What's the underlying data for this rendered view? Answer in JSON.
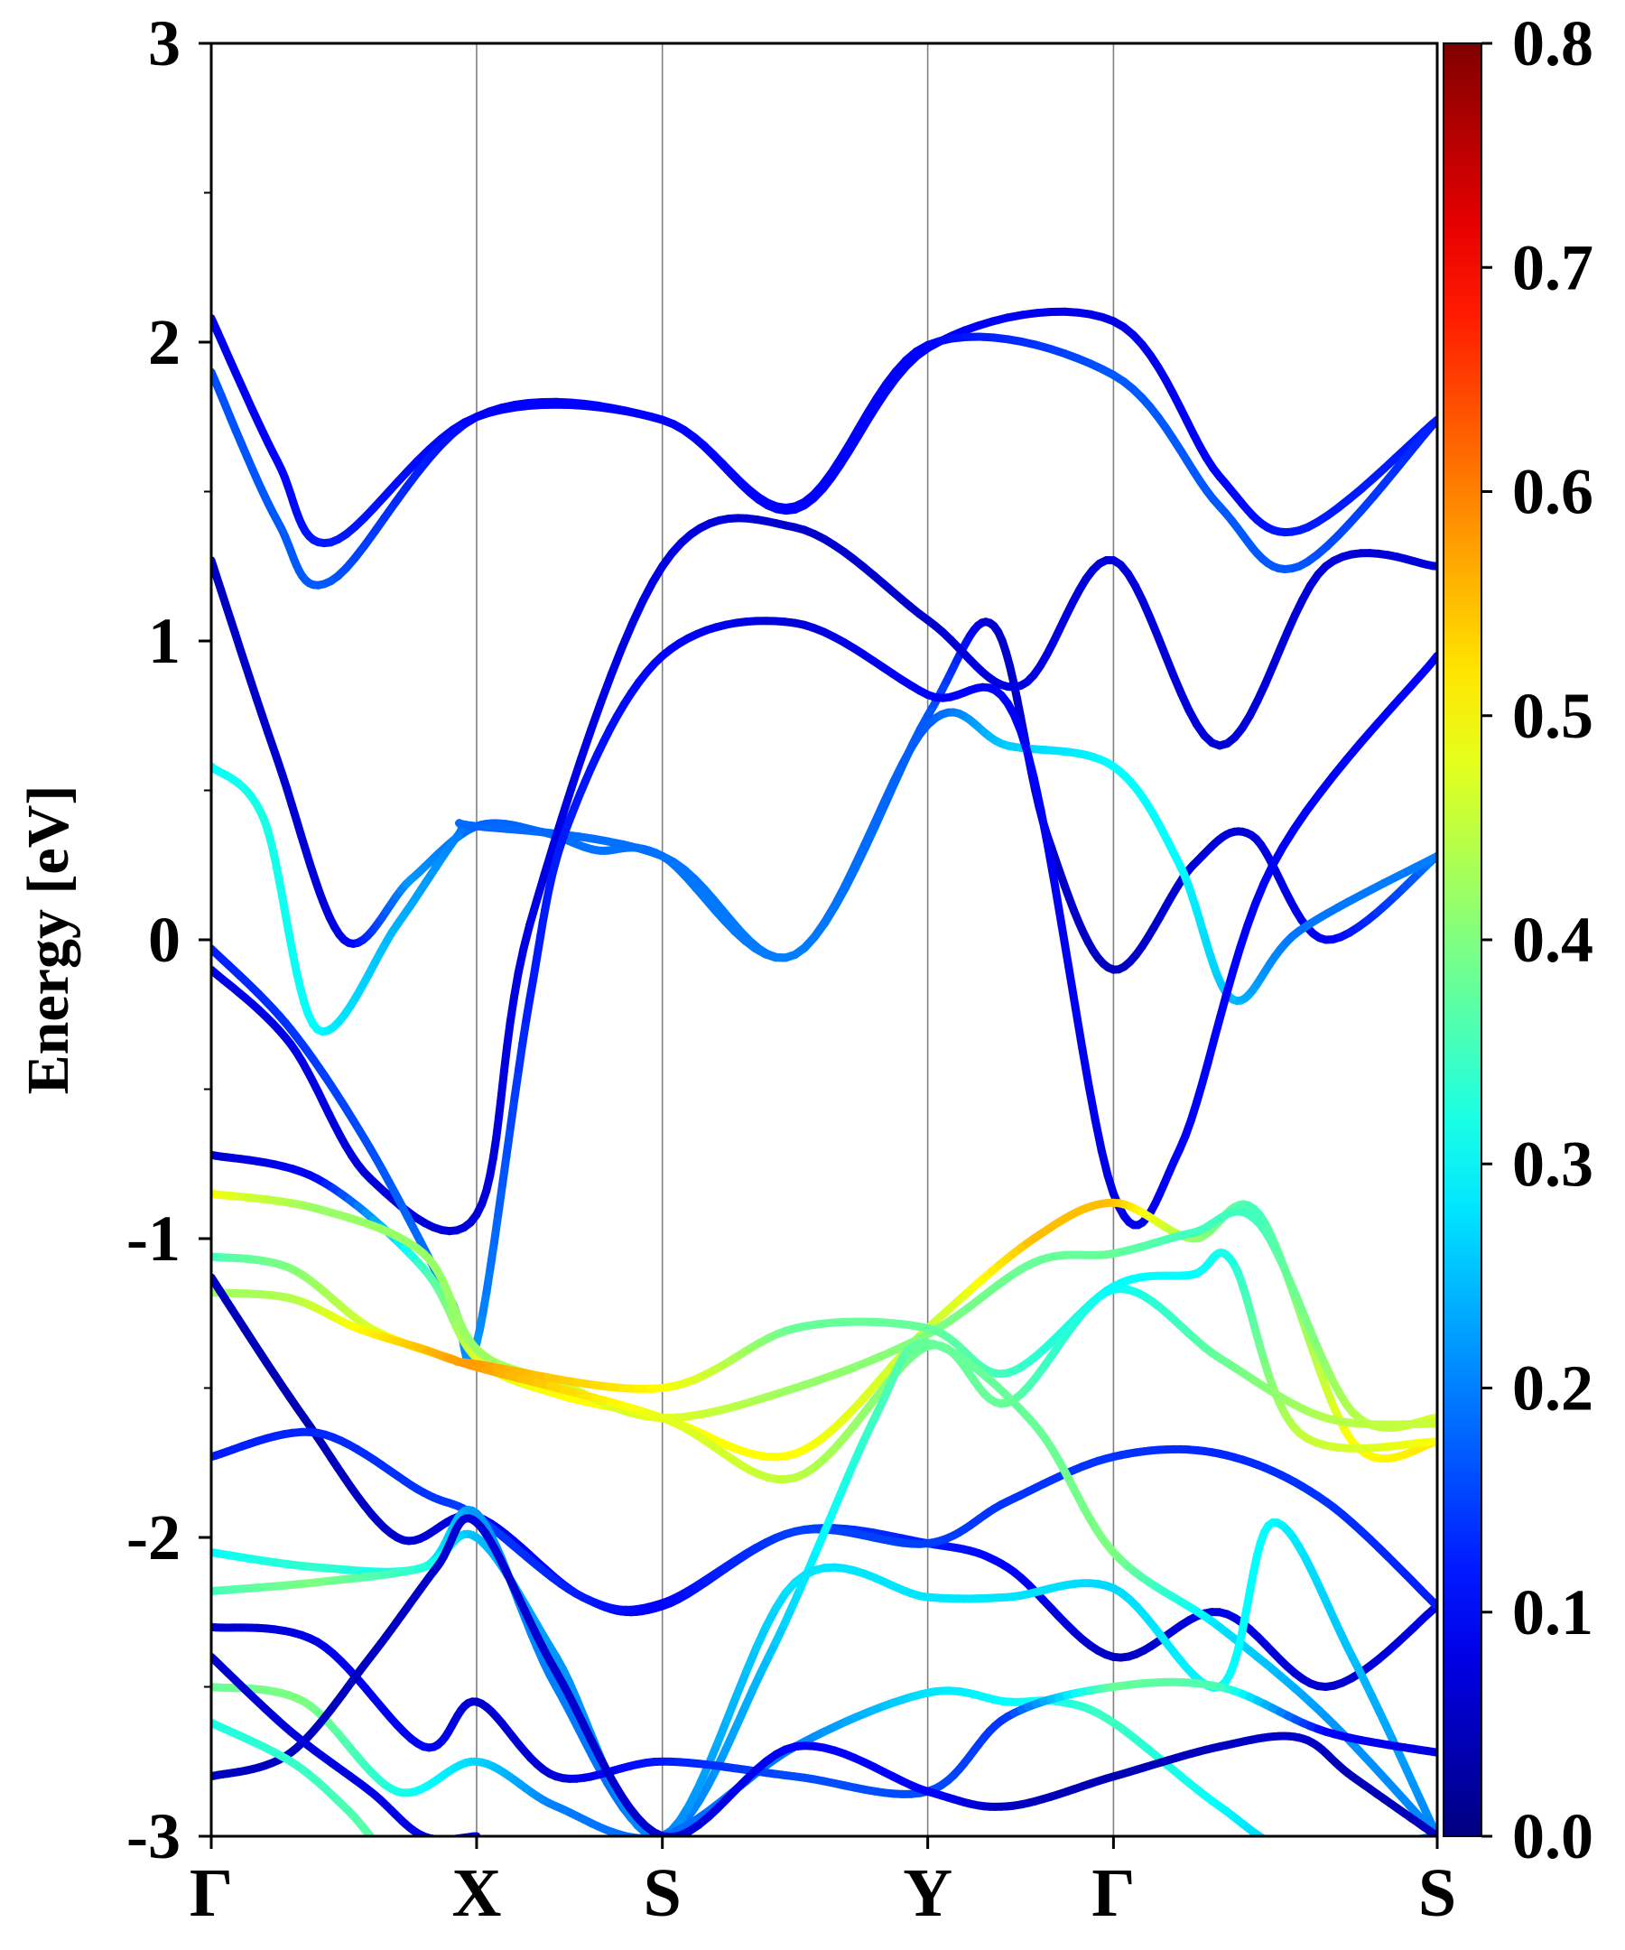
{
  "chart_data": {
    "type": "line",
    "title": "",
    "xlabel": "",
    "ylabel": "Energy [eV]",
    "ylim": [
      -3,
      3
    ],
    "y_ticks": [
      "3",
      "2",
      "1",
      "0",
      "-1",
      "-2",
      "-3"
    ],
    "y_tick_values": [
      3,
      2,
      1,
      0,
      -1,
      -2,
      -3
    ],
    "k_path": [
      {
        "label": "Γ",
        "k": 0.0
      },
      {
        "label": "X",
        "k": 1.0
      },
      {
        "label": "S",
        "k": 1.7
      },
      {
        "label": "Y",
        "k": 2.7
      },
      {
        "label": "Γ",
        "k": 3.4
      },
      {
        "label": "S",
        "k": 4.62
      }
    ],
    "grid": "vertical lines at high-symmetry points",
    "colorbar": {
      "colormap": "jet",
      "range": [
        0.0,
        0.8
      ],
      "ticks": [
        "0.8",
        "0.7",
        "0.6",
        "0.5",
        "0.4",
        "0.3",
        "0.2",
        "0.1",
        "0.0"
      ],
      "tick_values": [
        0.8,
        0.7,
        0.6,
        0.5,
        0.4,
        0.3,
        0.2,
        0.1,
        0.0
      ]
    },
    "series": [
      {
        "k": [
          0,
          0.25,
          0.45,
          1.0,
          1.7,
          2.2,
          2.7,
          3.4,
          3.8,
          4.1,
          4.62
        ],
        "energy": [
          2.08,
          1.6,
          1.33,
          1.75,
          1.74,
          1.44,
          1.98,
          2.07,
          1.55,
          1.37,
          1.74
        ],
        "weight": [
          0.08,
          0.1,
          0.12,
          0.1,
          0.1,
          0.1,
          0.1,
          0.08,
          0.1,
          0.12,
          0.12
        ]
      },
      {
        "k": [
          0,
          0.25,
          0.45,
          1.0,
          1.7,
          2.2,
          2.7,
          3.4,
          3.8,
          4.1,
          4.62
        ],
        "energy": [
          1.9,
          1.4,
          1.2,
          1.75,
          1.74,
          1.45,
          1.99,
          1.89,
          1.45,
          1.25,
          1.74
        ],
        "weight": [
          0.16,
          0.17,
          0.17,
          0.1,
          0.1,
          0.1,
          0.1,
          0.17,
          0.17,
          0.17,
          0.12
        ]
      },
      {
        "k": [
          0,
          0.25,
          0.5,
          0.75,
          1.0,
          1.25,
          1.45,
          1.7,
          2.2,
          2.7,
          2.95,
          3.15,
          3.4,
          3.7,
          3.92,
          4.2,
          4.62
        ],
        "energy": [
          1.27,
          0.6,
          0.0,
          0.2,
          0.38,
          0.36,
          0.3,
          0.28,
          -0.05,
          0.75,
          1.05,
          0.35,
          -0.1,
          0.25,
          0.35,
          0.0,
          0.28
        ],
        "weight": [
          0.05,
          0.06,
          0.08,
          0.22,
          0.18,
          0.18,
          0.19,
          0.19,
          0.2,
          0.17,
          0.06,
          0.06,
          0.05,
          0.07,
          0.07,
          0.09,
          0.2
        ]
      },
      {
        "k": [
          0,
          0.2,
          0.4,
          0.7,
          0.93,
          1.0,
          1.7,
          2.2,
          2.7,
          3.0,
          3.4,
          3.65,
          3.85,
          4.1,
          4.62
        ],
        "energy": [
          0.58,
          0.4,
          -0.3,
          0.05,
          0.35,
          0.38,
          0.28,
          -0.05,
          0.72,
          0.65,
          0.58,
          0.25,
          -0.2,
          0.03,
          0.28
        ],
        "weight": [
          0.3,
          0.32,
          0.3,
          0.24,
          0.2,
          0.18,
          0.19,
          0.2,
          0.17,
          0.26,
          0.3,
          0.3,
          0.25,
          0.19,
          0.2
        ]
      },
      {
        "k": [
          0,
          0.3,
          0.6,
          1.0,
          1.2,
          1.7,
          2.2,
          2.7,
          3.05,
          3.4,
          3.8,
          4.2,
          4.62
        ],
        "energy": [
          -0.1,
          -0.35,
          -0.8,
          -0.92,
          0.05,
          1.25,
          1.38,
          1.07,
          0.85,
          1.27,
          0.65,
          1.25,
          1.25
        ],
        "weight": [
          0.08,
          0.08,
          0.07,
          0.07,
          0.08,
          0.08,
          0.06,
          0.06,
          0.08,
          0.07,
          0.07,
          0.07,
          0.07
        ]
      },
      {
        "k": [
          0,
          0.3,
          0.6,
          0.9,
          1.0,
          1.2,
          1.35,
          1.7,
          2.2,
          2.7,
          3.05,
          3.4,
          3.65,
          4.0,
          4.62
        ],
        "energy": [
          -0.03,
          -0.3,
          -0.7,
          -1.2,
          -1.35,
          -0.2,
          0.4,
          0.95,
          1.06,
          0.82,
          0.7,
          -0.85,
          -0.7,
          0.25,
          0.95
        ],
        "weight": [
          0.12,
          0.14,
          0.16,
          0.2,
          0.22,
          0.12,
          0.12,
          0.1,
          0.07,
          0.1,
          0.1,
          0.08,
          0.1,
          0.1,
          0.1
        ]
      },
      {
        "k": [
          0,
          0.4,
          0.8,
          1.0,
          1.3,
          1.7,
          2.2,
          2.7,
          3.1,
          3.4,
          3.7,
          3.95,
          4.3,
          4.62
        ],
        "energy": [
          -0.72,
          -0.8,
          -1.1,
          -1.4,
          -1.52,
          -1.6,
          -1.72,
          -1.3,
          -1.0,
          -0.88,
          -1.0,
          -0.92,
          -1.68,
          -1.68
        ],
        "weight": [
          0.06,
          0.1,
          0.35,
          0.47,
          0.5,
          0.5,
          0.5,
          0.45,
          0.55,
          0.55,
          0.42,
          0.35,
          0.5,
          0.52
        ]
      },
      {
        "k": [
          0,
          0.4,
          0.8,
          1.0,
          1.3,
          1.7,
          2.2,
          2.7,
          3.1,
          3.4,
          3.7,
          3.95,
          4.3,
          4.62
        ],
        "energy": [
          -0.85,
          -0.9,
          -1.05,
          -1.37,
          -1.48,
          -1.6,
          -1.5,
          -1.32,
          -1.08,
          -1.05,
          -0.98,
          -0.95,
          -1.58,
          -1.6
        ],
        "weight": [
          0.5,
          0.42,
          0.42,
          0.42,
          0.45,
          0.48,
          0.42,
          0.4,
          0.38,
          0.38,
          0.35,
          0.35,
          0.44,
          0.47
        ]
      },
      {
        "k": [
          0,
          0.3,
          0.6,
          0.9,
          1.0,
          1.7,
          2.2,
          2.7,
          3.0,
          3.4,
          3.7,
          3.85,
          4.1,
          4.62
        ],
        "energy": [
          -1.06,
          -1.1,
          -1.3,
          -1.4,
          -1.42,
          -1.5,
          -1.3,
          -1.3,
          -1.45,
          -1.16,
          -1.12,
          -1.08,
          -1.65,
          -1.68
        ],
        "weight": [
          0.35,
          0.4,
          0.47,
          0.55,
          0.58,
          0.5,
          0.38,
          0.38,
          0.35,
          0.3,
          0.3,
          0.32,
          0.45,
          0.5
        ]
      },
      {
        "k": [
          0,
          0.3,
          0.55,
          0.8,
          1.0,
          1.7,
          2.2,
          2.7,
          3.0,
          3.4,
          3.8,
          4.2,
          4.62
        ],
        "energy": [
          -1.18,
          -1.2,
          -1.3,
          -1.37,
          -1.43,
          -1.6,
          -1.8,
          -1.36,
          -1.55,
          -1.17,
          -1.4,
          -1.6,
          -1.62
        ],
        "weight": [
          0.42,
          0.44,
          0.5,
          0.55,
          0.58,
          0.48,
          0.45,
          0.38,
          0.38,
          0.3,
          0.38,
          0.44,
          0.46
        ]
      },
      {
        "k": [
          0,
          0.35,
          0.7,
          1.0,
          1.4,
          1.7,
          2.2,
          2.7,
          3.0,
          3.4,
          3.8,
          4.2,
          4.62
        ],
        "energy": [
          -1.13,
          -1.6,
          -2.0,
          -1.93,
          -2.2,
          -2.23,
          -1.98,
          -2.02,
          -2.1,
          -2.4,
          -2.25,
          -2.5,
          -2.23
        ],
        "weight": [
          0.05,
          0.04,
          0.06,
          0.08,
          0.1,
          0.1,
          0.15,
          0.12,
          0.1,
          0.05,
          0.08,
          0.06,
          0.08
        ]
      },
      {
        "k": [
          0,
          0.4,
          0.8,
          1.0,
          1.4,
          1.7,
          2.2,
          2.7,
          3.0,
          3.4,
          3.8,
          4.2,
          4.62
        ],
        "energy": [
          -1.73,
          -1.65,
          -1.85,
          -1.93,
          -2.2,
          -2.22,
          -1.98,
          -2.02,
          -1.88,
          -1.73,
          -1.72,
          -1.88,
          -2.23
        ],
        "weight": [
          0.12,
          0.13,
          0.14,
          0.15,
          0.12,
          0.1,
          0.15,
          0.15,
          0.14,
          0.14,
          0.13,
          0.14,
          0.12
        ]
      },
      {
        "k": [
          0,
          0.4,
          0.8,
          1.0,
          1.3,
          1.7,
          2.1,
          2.5,
          2.7,
          3.1,
          3.4,
          3.8,
          4.2,
          4.62
        ],
        "energy": [
          -2.05,
          -2.1,
          -2.1,
          -1.92,
          -2.5,
          -3.0,
          -2.4,
          -1.6,
          -1.35,
          -1.62,
          -2.05,
          -2.3,
          -2.6,
          -3.0
        ],
        "weight": [
          0.3,
          0.34,
          0.3,
          0.22,
          0.2,
          0.18,
          0.25,
          0.35,
          0.38,
          0.38,
          0.4,
          0.28,
          0.22,
          0.2
        ]
      },
      {
        "k": [
          0,
          0.4,
          0.8,
          1.0,
          1.3,
          1.7,
          2.2,
          2.7,
          3.0,
          3.4,
          3.8,
          4.0,
          4.3,
          4.62
        ],
        "energy": [
          -2.18,
          -2.15,
          -2.1,
          -2.0,
          -2.4,
          -3.0,
          -2.15,
          -2.2,
          -2.2,
          -2.17,
          -2.5,
          -1.95,
          -2.4,
          -3.0
        ],
        "weight": [
          0.35,
          0.4,
          0.33,
          0.25,
          0.22,
          0.2,
          0.28,
          0.28,
          0.28,
          0.27,
          0.3,
          0.3,
          0.25,
          0.2
        ]
      },
      {
        "k": [
          0,
          0.35,
          0.7,
          1.0,
          1.3,
          1.7,
          2.2,
          2.7,
          3.0,
          3.2,
          3.4,
          3.8,
          4.1,
          4.62
        ],
        "energy": [
          -2.5,
          -2.55,
          -2.85,
          -2.75,
          -2.9,
          -3.0,
          -2.7,
          -2.52,
          -2.55,
          -2.55,
          -2.62,
          -2.9,
          -3.05,
          -3.0
        ],
        "weight": [
          0.38,
          0.4,
          0.32,
          0.27,
          0.2,
          0.18,
          0.2,
          0.28,
          0.3,
          0.32,
          0.35,
          0.3,
          0.25,
          0.2
        ]
      },
      {
        "k": [
          0,
          0.4,
          0.8,
          1.0,
          1.3,
          1.7,
          2.2,
          2.7,
          3.0,
          3.4,
          3.8,
          4.2,
          4.62
        ],
        "energy": [
          -2.3,
          -2.35,
          -2.7,
          -2.55,
          -2.8,
          -2.75,
          -2.8,
          -2.85,
          -2.6,
          -2.5,
          -2.5,
          -2.65,
          -2.72
        ],
        "weight": [
          0.06,
          0.08,
          0.1,
          0.06,
          0.07,
          0.12,
          0.16,
          0.16,
          0.14,
          0.38,
          0.36,
          0.1,
          0.07
        ]
      },
      {
        "k": [
          0,
          0.3,
          0.6,
          0.85,
          1.0,
          1.3,
          1.7,
          2.2,
          2.7,
          3.0,
          3.4,
          3.8,
          4.1,
          4.3,
          4.62
        ],
        "energy": [
          -2.8,
          -2.72,
          -2.4,
          -2.1,
          -1.95,
          -2.45,
          -3.0,
          -2.7,
          -2.85,
          -2.9,
          -2.8,
          -2.7,
          -2.67,
          -2.8,
          -3.0
        ],
        "weight": [
          0.05,
          0.05,
          0.05,
          0.06,
          0.07,
          0.06,
          0.06,
          0.1,
          0.1,
          0.05,
          0.04,
          0.05,
          0.06,
          0.04,
          0.05
        ]
      },
      {
        "k": [
          0,
          0.3,
          0.6,
          0.8,
          1.0
        ],
        "energy": [
          -2.4,
          -2.65,
          -2.85,
          -3.0,
          -3.0
        ],
        "weight": [
          0.06,
          0.07,
          0.08,
          0.08,
          0.08
        ]
      },
      {
        "k": [
          0,
          0.3,
          0.5,
          0.6
        ],
        "energy": [
          -2.62,
          -2.75,
          -2.9,
          -3.0
        ],
        "weight": [
          0.32,
          0.34,
          0.36,
          0.37
        ]
      }
    ]
  }
}
